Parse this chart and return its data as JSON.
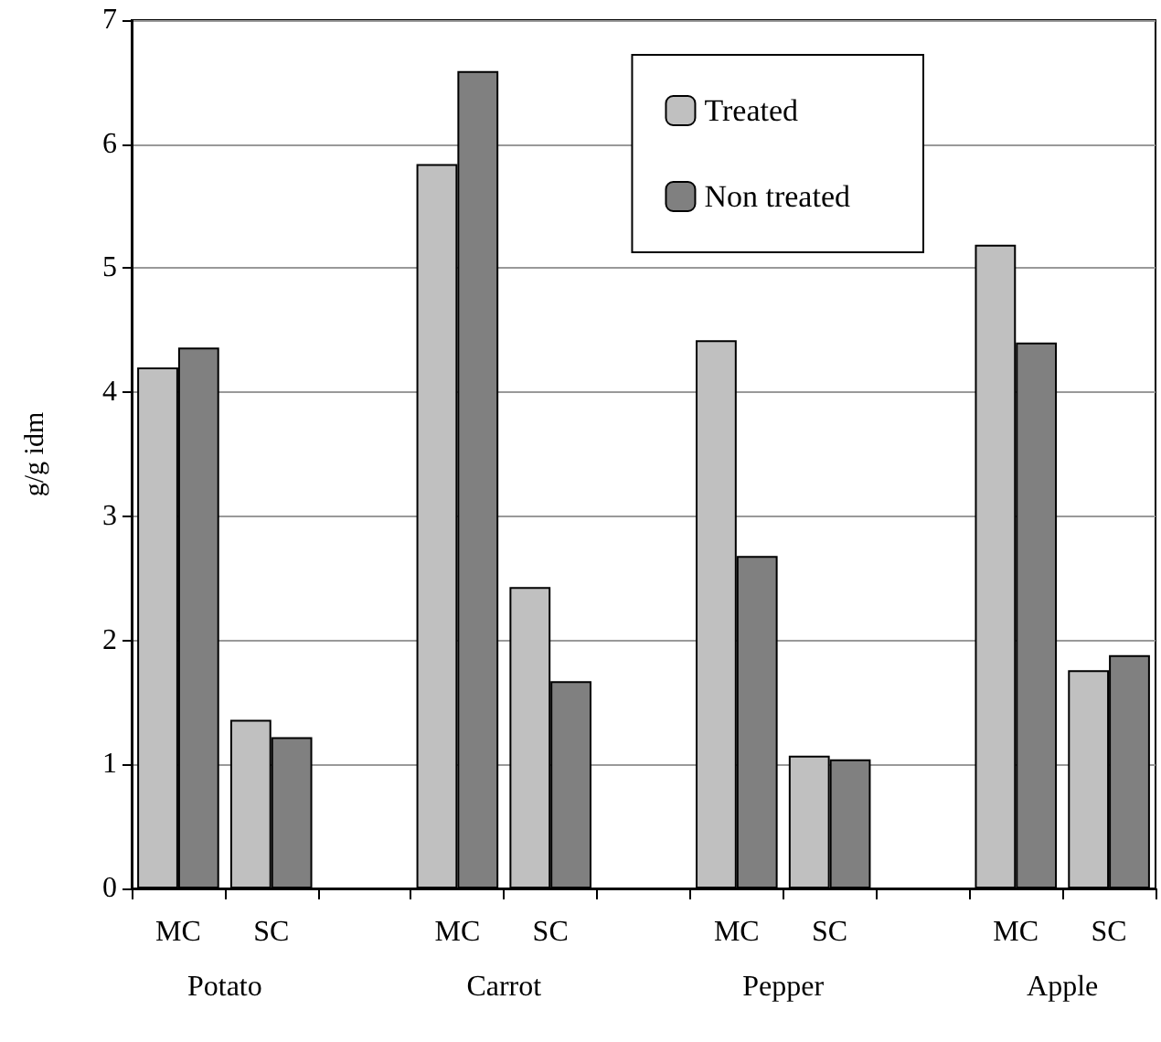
{
  "chart_data": {
    "type": "bar",
    "ylabel": "g/g idm",
    "categories": [
      "MC",
      "SC",
      null,
      "MC",
      "SC",
      null,
      "MC",
      "SC",
      null,
      "MC",
      "SC"
    ],
    "series": [
      {
        "name": "Treated",
        "color": "#c0c0c0",
        "values": [
          4.2,
          1.36,
          null,
          5.84,
          2.43,
          null,
          4.42,
          1.07,
          null,
          5.19,
          1.76
        ]
      },
      {
        "name": "Non treated",
        "color": "#808080",
        "values": [
          4.36,
          1.22,
          null,
          6.59,
          1.67,
          null,
          2.68,
          1.04,
          null,
          4.4,
          1.88
        ]
      }
    ],
    "annotations": [
      "Potato",
      "Carrot",
      "Pepper",
      "Apple"
    ],
    "ylim": [
      0,
      7
    ],
    "yticks": [
      0,
      1,
      2,
      3,
      4,
      5,
      6,
      7
    ],
    "grid": "y",
    "legend": "top right"
  }
}
